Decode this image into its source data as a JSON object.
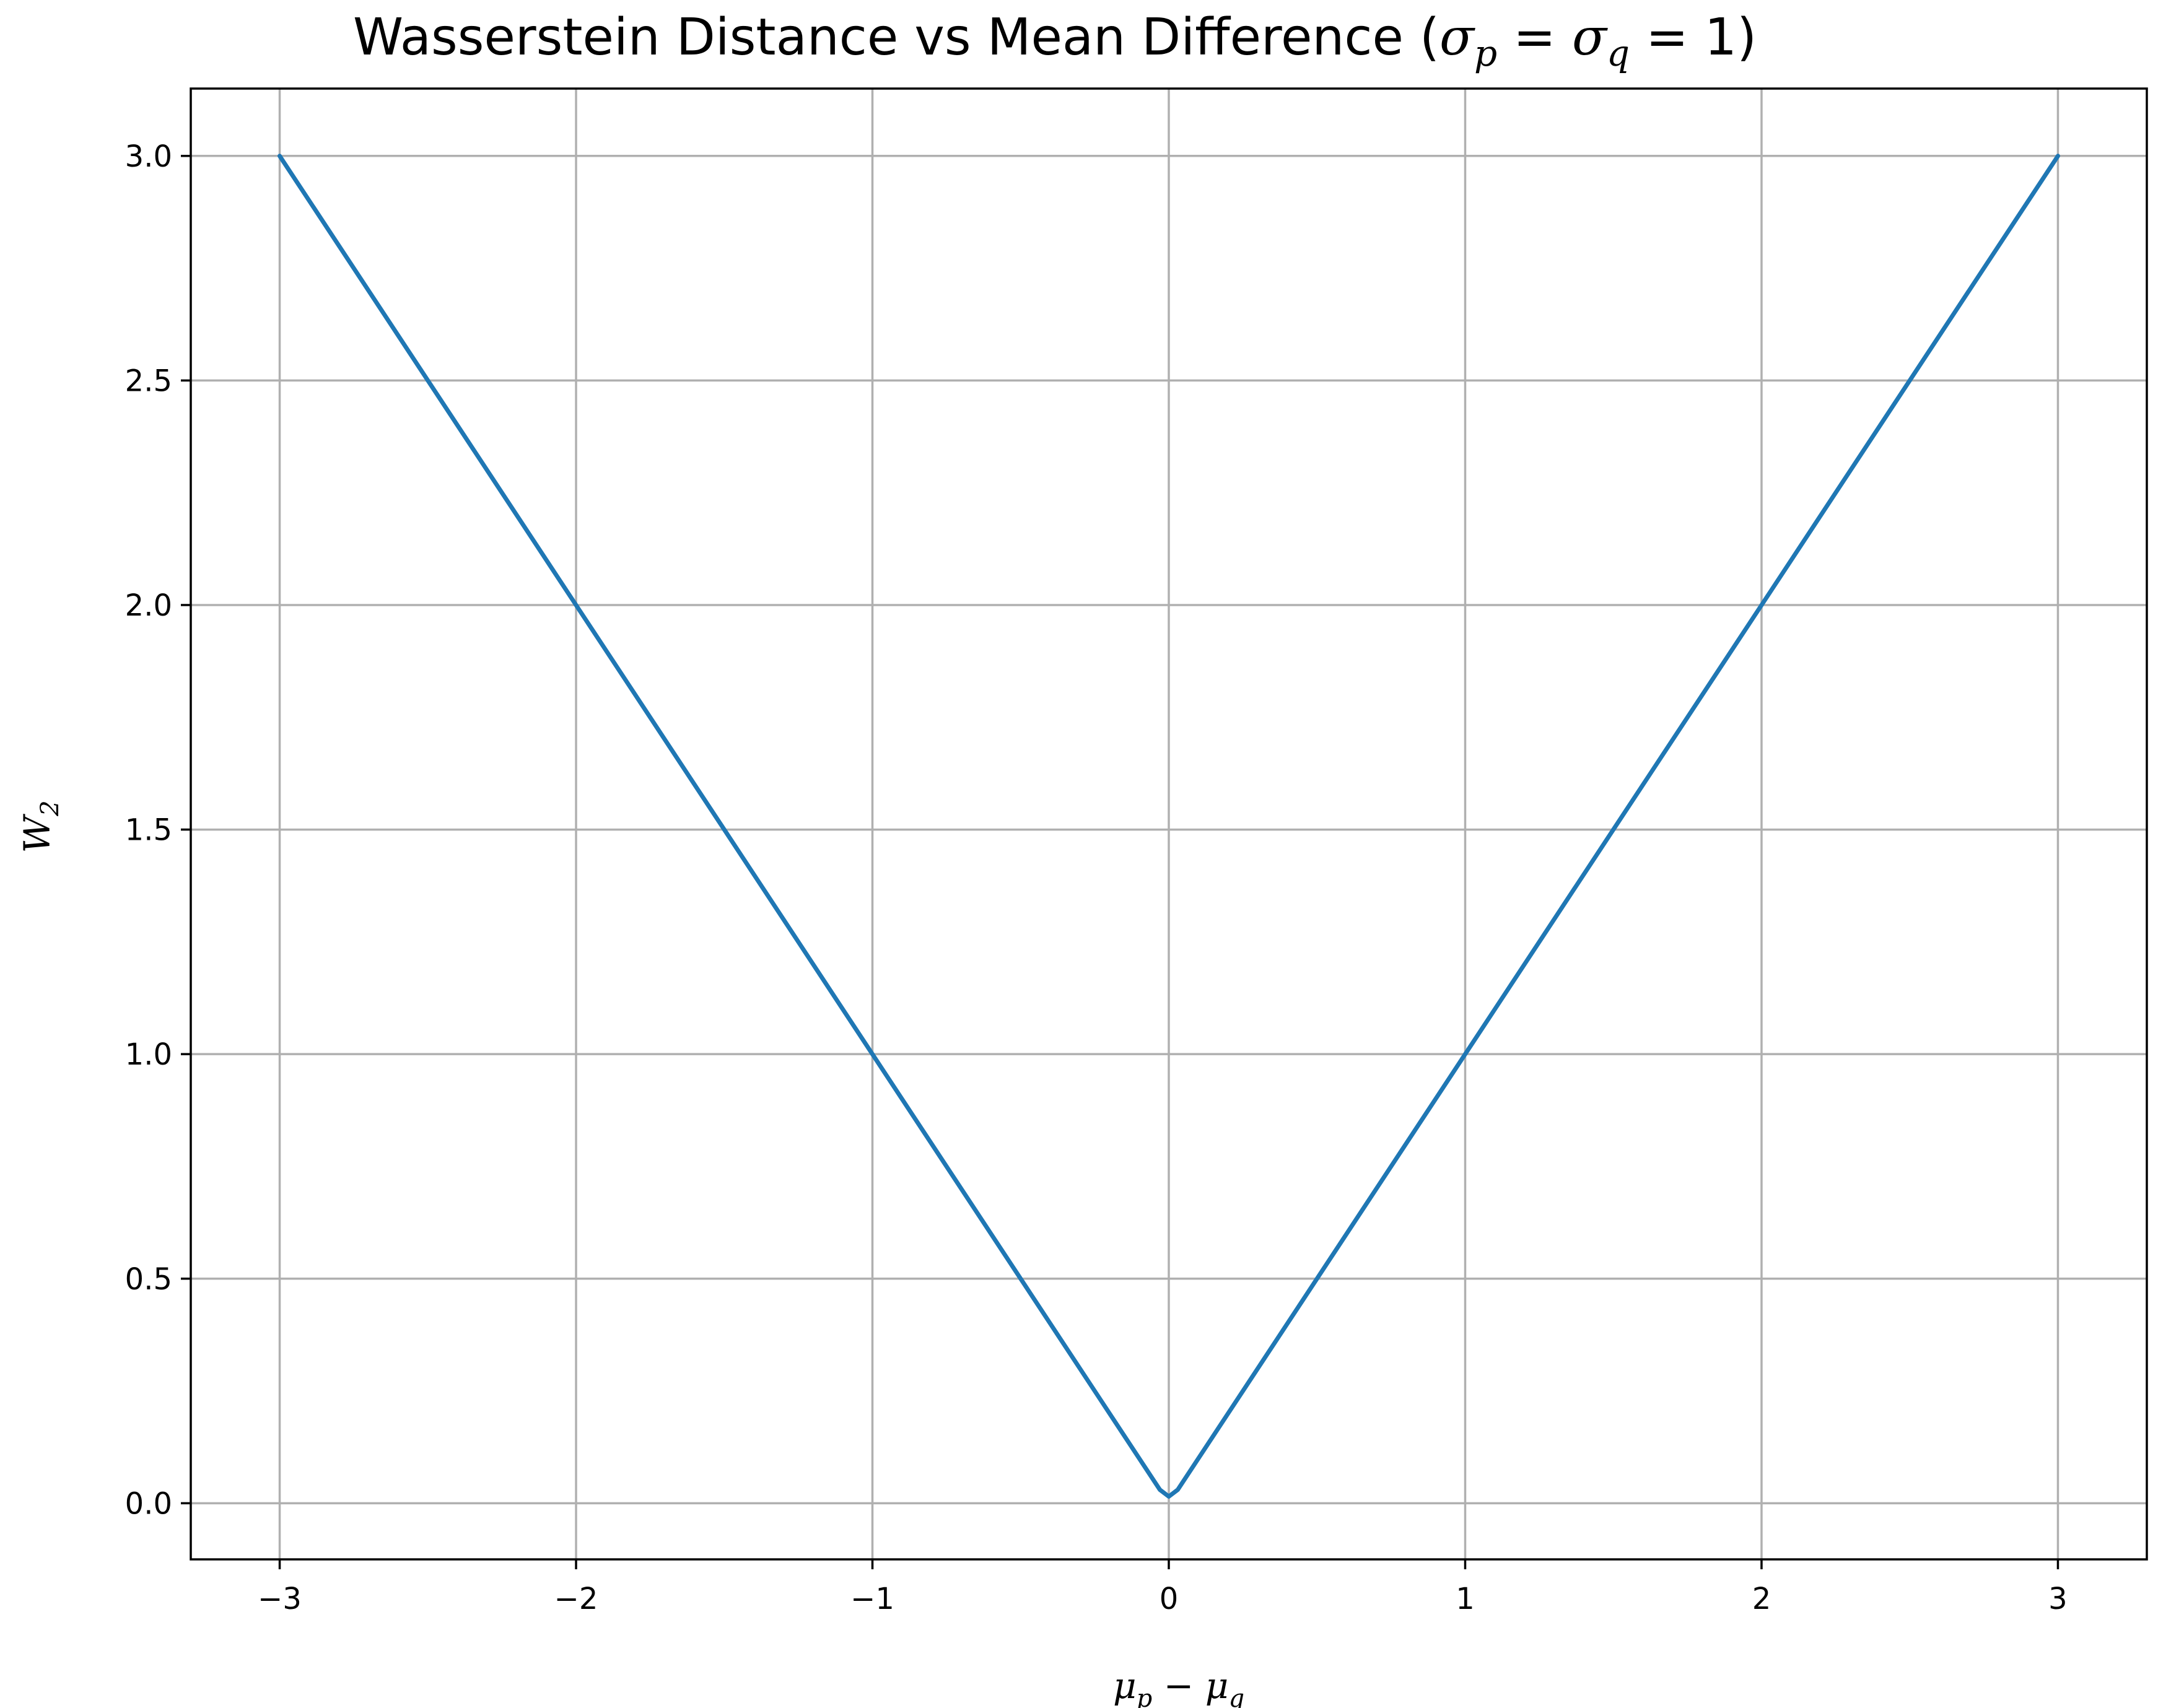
{
  "chart_data": {
    "type": "line",
    "title": "Wasserstein Distance vs Mean Difference (σp = σq = 1)",
    "title_main": "Wasserstein Distance vs Mean Difference (",
    "title_sigma1": "σ",
    "title_sub1": "p",
    "title_eq1": " = ",
    "title_sigma2": "σ",
    "title_sub2": "q",
    "title_eq2": " = 1)",
    "xlabel": "μp − μq",
    "xlabel_mu1": "μ",
    "xlabel_sub1": "p",
    "xlabel_minus": " − ",
    "xlabel_mu2": "μ",
    "xlabel_sub2": "q",
    "ylabel": "W2",
    "ylabel_main": "W",
    "ylabel_sub": "2",
    "xlim": [
      -3.3,
      3.3
    ],
    "ylim": [
      -0.125,
      3.15
    ],
    "xticks": [
      -3,
      -2,
      -1,
      0,
      1,
      2,
      3
    ],
    "xtick_labels": [
      "−3",
      "−2",
      "−1",
      "0",
      "1",
      "2",
      "3"
    ],
    "yticks": [
      0.0,
      0.5,
      1.0,
      1.5,
      2.0,
      2.5,
      3.0
    ],
    "ytick_labels": [
      "0.0",
      "0.5",
      "1.0",
      "1.5",
      "2.0",
      "2.5",
      "3.0"
    ],
    "grid": true,
    "series": [
      {
        "color": "#1f77b4",
        "x": [
          -3,
          -2.5,
          -2,
          -1.5,
          -1,
          -0.5,
          -0.03,
          0,
          0.03,
          0.5,
          1,
          1.5,
          2,
          2.5,
          3
        ],
        "y": [
          3,
          2.5,
          2,
          1.5,
          1,
          0.5,
          0.03,
          0.015,
          0.03,
          0.5,
          1,
          1.5,
          2,
          2.5,
          3
        ]
      }
    ]
  }
}
